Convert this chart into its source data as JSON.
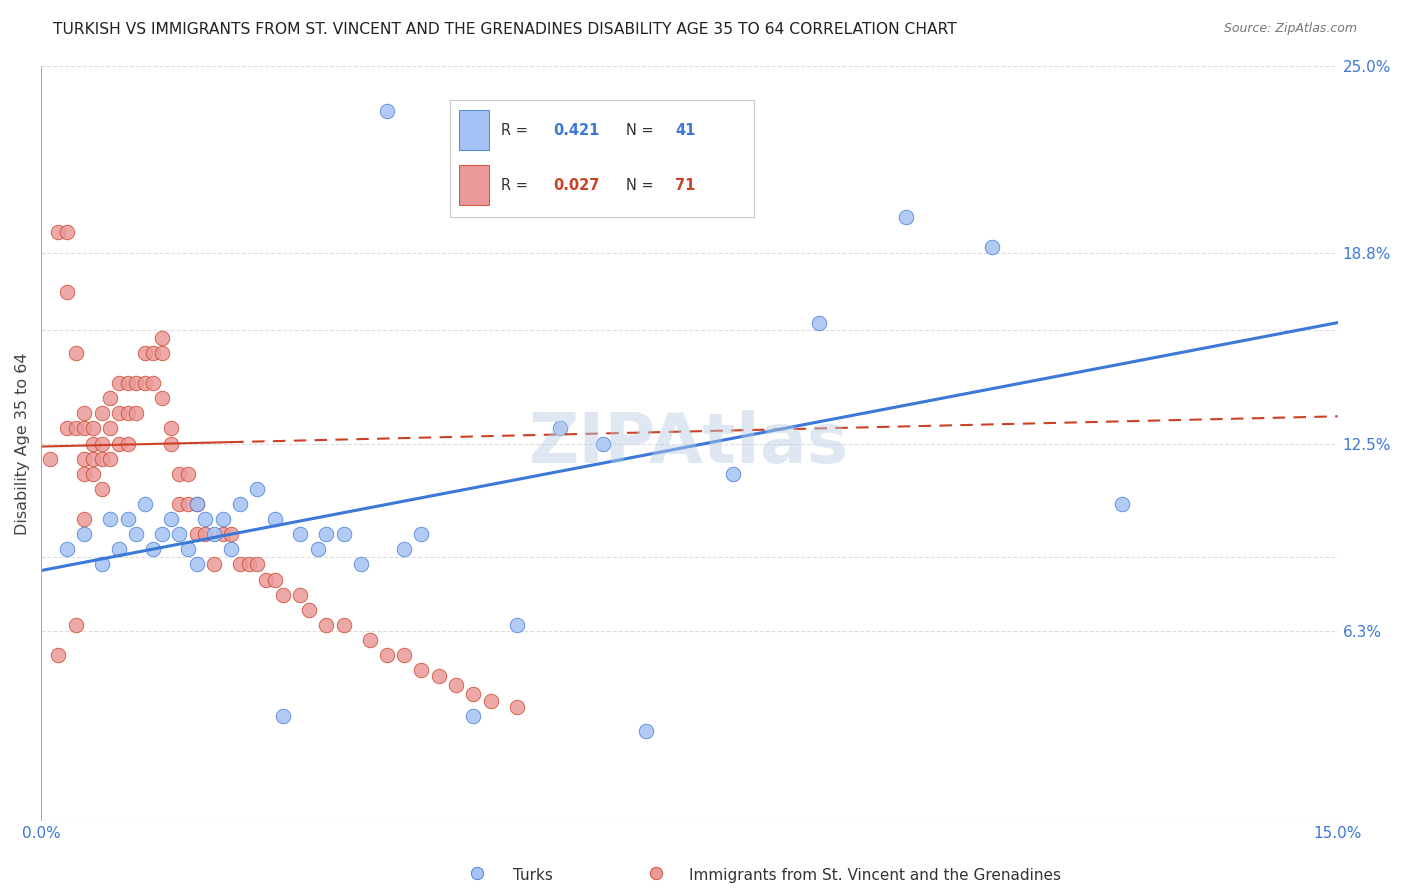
{
  "title": "TURKISH VS IMMIGRANTS FROM ST. VINCENT AND THE GRENADINES DISABILITY AGE 35 TO 64 CORRELATION CHART",
  "source": "Source: ZipAtlas.com",
  "ylabel": "Disability Age 35 to 64",
  "x_min": 0.0,
  "x_max": 0.15,
  "y_min": 0.0,
  "y_max": 0.25,
  "x_tick_pos": [
    0.0,
    0.025,
    0.05,
    0.075,
    0.1,
    0.125,
    0.15
  ],
  "x_tick_labels": [
    "0.0%",
    "",
    "",
    "",
    "",
    "",
    "15.0%"
  ],
  "y_tick_vals": [
    0.0,
    0.063,
    0.0875,
    0.125,
    0.1625,
    0.188,
    0.25
  ],
  "y_tick_labels": [
    "",
    "6.3%",
    "",
    "12.5%",
    "",
    "18.8%",
    "25.0%"
  ],
  "watermark": "ZIPAtlas",
  "r_blue": "0.421",
  "n_blue": "41",
  "r_pink": "0.027",
  "n_pink": "71",
  "color_blue_fill": "#a4c2f4",
  "color_blue_edge": "#3c78d8",
  "color_pink_fill": "#ea9999",
  "color_pink_edge": "#cc4125",
  "color_line_blue": "#3c78d8",
  "color_line_pink": "#cc4125",
  "blue_line_y0": 0.083,
  "blue_line_y1": 0.165,
  "pink_line_y0": 0.124,
  "pink_line_y1": 0.134,
  "grid_color": "#dddddd",
  "background_color": "#ffffff",
  "turks_x": [
    0.003,
    0.005,
    0.007,
    0.008,
    0.009,
    0.01,
    0.011,
    0.012,
    0.013,
    0.014,
    0.015,
    0.016,
    0.017,
    0.018,
    0.018,
    0.019,
    0.02,
    0.021,
    0.022,
    0.023,
    0.025,
    0.027,
    0.028,
    0.03,
    0.032,
    0.033,
    0.035,
    0.037,
    0.04,
    0.042,
    0.044,
    0.05,
    0.055,
    0.06,
    0.065,
    0.07,
    0.08,
    0.09,
    0.1,
    0.11,
    0.125
  ],
  "turks_y": [
    0.09,
    0.095,
    0.085,
    0.1,
    0.09,
    0.1,
    0.095,
    0.105,
    0.09,
    0.095,
    0.1,
    0.095,
    0.09,
    0.105,
    0.085,
    0.1,
    0.095,
    0.1,
    0.09,
    0.105,
    0.11,
    0.1,
    0.035,
    0.095,
    0.09,
    0.095,
    0.095,
    0.085,
    0.235,
    0.09,
    0.095,
    0.035,
    0.065,
    0.13,
    0.125,
    0.03,
    0.115,
    0.165,
    0.2,
    0.19,
    0.105
  ],
  "svincent_x": [
    0.001,
    0.002,
    0.002,
    0.003,
    0.003,
    0.003,
    0.004,
    0.004,
    0.004,
    0.005,
    0.005,
    0.005,
    0.005,
    0.005,
    0.006,
    0.006,
    0.006,
    0.006,
    0.007,
    0.007,
    0.007,
    0.007,
    0.008,
    0.008,
    0.008,
    0.009,
    0.009,
    0.009,
    0.01,
    0.01,
    0.01,
    0.011,
    0.011,
    0.012,
    0.012,
    0.013,
    0.013,
    0.014,
    0.014,
    0.014,
    0.015,
    0.015,
    0.016,
    0.016,
    0.017,
    0.017,
    0.018,
    0.018,
    0.019,
    0.02,
    0.021,
    0.022,
    0.023,
    0.024,
    0.025,
    0.026,
    0.027,
    0.028,
    0.03,
    0.031,
    0.033,
    0.035,
    0.038,
    0.04,
    0.042,
    0.044,
    0.046,
    0.048,
    0.05,
    0.052,
    0.055
  ],
  "svincent_y": [
    0.12,
    0.195,
    0.055,
    0.195,
    0.175,
    0.13,
    0.155,
    0.13,
    0.065,
    0.135,
    0.13,
    0.12,
    0.115,
    0.1,
    0.13,
    0.125,
    0.12,
    0.115,
    0.135,
    0.125,
    0.12,
    0.11,
    0.14,
    0.13,
    0.12,
    0.145,
    0.135,
    0.125,
    0.145,
    0.135,
    0.125,
    0.145,
    0.135,
    0.155,
    0.145,
    0.155,
    0.145,
    0.16,
    0.155,
    0.14,
    0.13,
    0.125,
    0.115,
    0.105,
    0.115,
    0.105,
    0.105,
    0.095,
    0.095,
    0.085,
    0.095,
    0.095,
    0.085,
    0.085,
    0.085,
    0.08,
    0.08,
    0.075,
    0.075,
    0.07,
    0.065,
    0.065,
    0.06,
    0.055,
    0.055,
    0.05,
    0.048,
    0.045,
    0.042,
    0.04,
    0.038
  ]
}
